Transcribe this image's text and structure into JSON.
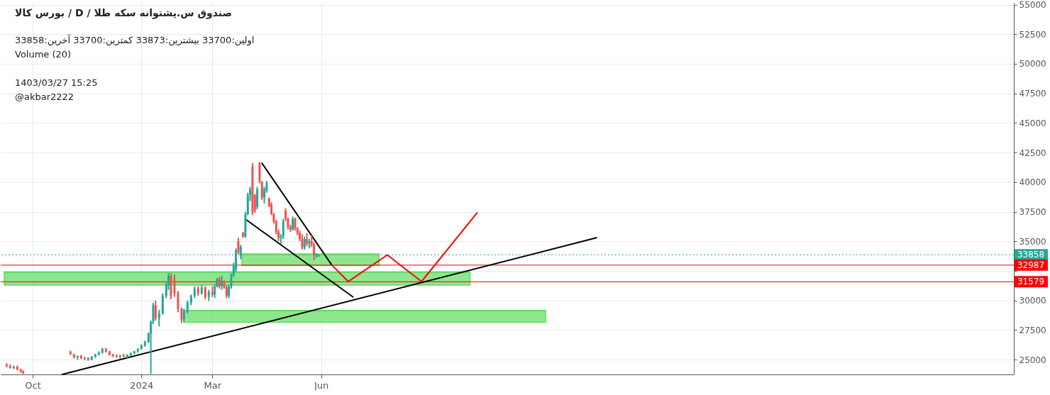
{
  "chart_data": {
    "type": "candlestick",
    "title": "صندوق س.پشتوانه سکه طلا / D / بورس کالا",
    "annotations": [
      "اولین:33700  بیشترین:33873  کمترین:33700  آخرین:33858",
      "Volume (20)",
      "1403/03/27 15:25",
      "@akbar2222"
    ],
    "xlim": [
      "2023-09-07",
      "2026-01-05"
    ],
    "xticks": [
      {
        "value": "2023-10-01",
        "label": "Oct"
      },
      {
        "value": "2024-01-01",
        "label": "2024"
      },
      {
        "value": "2024-03-01",
        "label": "Mar"
      },
      {
        "value": "2024-06-01",
        "label": "Jun"
      }
    ],
    "ylim": [
      23750,
      55150
    ],
    "yticks": [
      25000,
      27500,
      30000,
      {
        "value": 32500,
        "label": null
      },
      35000,
      37500,
      40000,
      42500,
      45000,
      47500,
      50000,
      52500,
      55000
    ],
    "grid": true,
    "ref_lines": [
      {
        "axis": "y",
        "value": 33858,
        "label": "33858",
        "color": "#26a69a",
        "line_style": "dotted"
      },
      {
        "axis": "y",
        "value": 32987,
        "label": "32987",
        "color": "#ff0000",
        "line_style": "solid"
      },
      {
        "axis": "y",
        "value": 31579,
        "label": "31579",
        "color": "#ff0000",
        "line_style": "solid"
      }
    ],
    "series": [
      {
        "type": "line",
        "x": [
          "2024-03-26",
          "2024-07-20"
        ],
        "values": [
          33900,
          33900
        ],
        "lower": [
          32950,
          32950
        ],
        "upper": [
          33900,
          33900
        ],
        "color": "#5fdc5f"
      },
      {
        "type": "line",
        "x": [
          "2023-09-07",
          "2024-10-05"
        ],
        "values": [
          32400,
          32400
        ],
        "lower": [
          31300,
          31300
        ],
        "upper": [
          32400,
          32400
        ],
        "color": "#5fdc5f"
      },
      {
        "type": "line",
        "x": [
          "2024-02-06",
          "2024-12-08"
        ],
        "values": [
          29150,
          29150
        ],
        "lower": [
          28150,
          28150
        ],
        "upper": [
          29150,
          29150
        ],
        "color": "#5fdc5f"
      },
      {
        "type": "line",
        "x": [
          "2023-10-26",
          "2025-01-20"
        ],
        "values": [
          23750,
          35300
        ],
        "color": "#000000"
      },
      {
        "type": "line",
        "x": [
          "2024-04-12",
          "2024-06-10"
        ],
        "values": [
          41600,
          33000
        ],
        "color": "#000000"
      },
      {
        "type": "line",
        "x": [
          "2024-03-30",
          "2024-06-28"
        ],
        "values": [
          36800,
          30300
        ],
        "color": "#000000"
      },
      {
        "type": "line",
        "x": [
          "2024-06-10",
          "2024-06-24",
          "2024-07-27",
          "2024-08-25",
          "2024-10-11"
        ],
        "values": [
          33000,
          31600,
          33850,
          31600,
          37400
        ],
        "color": "#ff0000"
      },
      {
        "x": [
          "2023-09-09",
          "2023-09-12",
          "2023-09-15",
          "2023-09-18",
          "2023-09-21",
          "2023-09-23",
          "2023-11-02",
          "2023-11-05",
          "2023-11-08",
          "2023-11-11",
          "2023-11-14",
          "2023-11-17",
          "2023-11-20",
          "2023-11-23",
          "2023-11-26",
          "2023-11-29",
          "2023-12-02",
          "2023-12-05",
          "2023-12-08",
          "2023-12-11",
          "2023-12-14",
          "2023-12-17",
          "2023-12-20",
          "2023-12-23",
          "2023-12-26",
          "2023-12-29",
          "2024-01-01",
          "2024-01-04",
          "2024-01-07",
          "2024-01-09",
          "2024-01-11",
          "2024-01-13",
          "2024-01-16",
          "2024-01-19",
          "2024-01-22",
          "2024-01-24",
          "2024-01-26",
          "2024-01-29",
          "2024-02-01",
          "2024-02-04",
          "2024-02-06",
          "2024-02-09",
          "2024-02-12",
          "2024-02-15",
          "2024-02-18",
          "2024-02-21",
          "2024-02-24",
          "2024-02-27",
          "2024-03-01",
          "2024-03-03",
          "2024-03-05",
          "2024-03-07",
          "2024-03-09",
          "2024-03-11",
          "2024-03-13",
          "2024-03-15",
          "2024-03-17",
          "2024-03-19",
          "2024-03-21",
          "2024-03-23",
          "2024-03-25",
          "2024-03-27",
          "2024-03-29",
          "2024-03-31",
          "2024-04-02",
          "2024-04-04",
          "2024-04-06",
          "2024-04-08",
          "2024-04-10",
          "2024-04-12",
          "2024-04-14",
          "2024-04-16",
          "2024-04-18",
          "2024-04-20",
          "2024-04-22",
          "2024-04-24",
          "2024-04-26",
          "2024-04-28",
          "2024-04-30",
          "2024-05-02",
          "2024-05-04",
          "2024-05-06",
          "2024-05-08",
          "2024-05-10",
          "2024-05-12",
          "2024-05-14",
          "2024-05-16",
          "2024-05-18",
          "2024-05-20",
          "2024-05-22",
          "2024-05-24",
          "2024-05-26",
          "2024-05-28",
          "2024-05-30"
        ],
        "ohlc": [
          [
            24550,
            24700,
            24350,
            24450
          ],
          [
            24450,
            24600,
            24250,
            24300
          ],
          [
            24300,
            24500,
            24200,
            24400
          ],
          [
            24400,
            24500,
            24100,
            24150
          ],
          [
            24150,
            24250,
            23900,
            24000
          ],
          [
            24000,
            24100,
            23800,
            23850
          ],
          [
            25650,
            25750,
            25400,
            25450
          ],
          [
            25450,
            25500,
            25100,
            25200
          ],
          [
            25200,
            25350,
            25000,
            25300
          ],
          [
            25300,
            25400,
            25050,
            25100
          ],
          [
            25100,
            25250,
            24950,
            25150
          ],
          [
            25150,
            25200,
            24900,
            25000
          ],
          [
            25000,
            25300,
            24950,
            25250
          ],
          [
            25250,
            25500,
            25150,
            25450
          ],
          [
            25450,
            25700,
            25350,
            25600
          ],
          [
            25600,
            26000,
            25500,
            25900
          ],
          [
            25900,
            26000,
            25600,
            25700
          ],
          [
            25700,
            25750,
            25350,
            25400
          ],
          [
            25400,
            25500,
            25200,
            25300
          ],
          [
            25300,
            25450,
            25150,
            25250
          ],
          [
            25250,
            25400,
            25100,
            25350
          ],
          [
            25350,
            25500,
            25200,
            25250
          ],
          [
            25250,
            25450,
            25150,
            25400
          ],
          [
            25400,
            25600,
            25300,
            25550
          ],
          [
            25550,
            25750,
            25450,
            25700
          ],
          [
            25700,
            25950,
            25600,
            25900
          ],
          [
            25900,
            26300,
            25850,
            26200
          ],
          [
            26200,
            26600,
            26100,
            26500
          ],
          [
            26500,
            27300,
            26400,
            27200
          ],
          [
            27200,
            28300,
            23800,
            28200
          ],
          [
            28200,
            29800,
            28000,
            29600
          ],
          [
            29600,
            30000,
            28300,
            28500
          ],
          [
            28500,
            29200,
            27800,
            28900
          ],
          [
            28900,
            30600,
            28800,
            30400
          ],
          [
            30400,
            31500,
            30200,
            31300
          ],
          [
            31300,
            32300,
            30900,
            32100
          ],
          [
            32100,
            32300,
            30100,
            30400
          ],
          [
            31800,
            32200,
            30300,
            30600
          ],
          [
            30600,
            30800,
            29000,
            29300
          ],
          [
            29300,
            29400,
            28100,
            28400
          ],
          [
            28400,
            29300,
            28200,
            29100
          ],
          [
            29100,
            30000,
            28900,
            29800
          ],
          [
            29800,
            30500,
            29600,
            30400
          ],
          [
            30400,
            31200,
            30200,
            31000
          ],
          [
            31000,
            31200,
            30400,
            30600
          ],
          [
            30600,
            31300,
            30500,
            31100
          ],
          [
            31100,
            31200,
            30100,
            30300
          ],
          [
            30300,
            30900,
            29950,
            30700
          ],
          [
            30700,
            31200,
            30300,
            30500
          ],
          [
            30500,
            31400,
            30200,
            31200
          ],
          [
            31200,
            31900,
            31100,
            31800
          ],
          [
            31800,
            32000,
            31000,
            31200
          ],
          [
            31200,
            32100,
            30900,
            31500
          ],
          [
            31500,
            31700,
            31000,
            31100
          ],
          [
            31100,
            31300,
            30200,
            30400
          ],
          [
            30400,
            31300,
            30200,
            31200
          ],
          [
            31200,
            32300,
            31000,
            32100
          ],
          [
            32100,
            33200,
            32000,
            33000
          ],
          [
            32600,
            34400,
            32400,
            34200
          ],
          [
            35000,
            35300,
            33900,
            34100
          ],
          [
            33800,
            34700,
            33500,
            34500
          ],
          [
            35700,
            35800,
            35300,
            35400
          ],
          [
            35400,
            37500,
            35300,
            37300
          ],
          [
            37300,
            39100,
            37200,
            38900
          ],
          [
            38900,
            39600,
            38400,
            39400
          ],
          [
            41300,
            41600,
            37200,
            37500
          ],
          [
            38900,
            39000,
            37400,
            37600
          ],
          [
            37900,
            39600,
            37700,
            39400
          ],
          [
            41600,
            41700,
            39900,
            40100
          ],
          [
            40000,
            40100,
            38500,
            38700
          ],
          [
            38700,
            39600,
            38200,
            39400
          ],
          [
            39300,
            40100,
            39100,
            39900
          ],
          [
            38600,
            38700,
            37900,
            38000
          ],
          [
            38100,
            38300,
            37200,
            37300
          ],
          [
            37300,
            37400,
            36500,
            36700
          ],
          [
            36700,
            36800,
            35600,
            35800
          ],
          [
            35800,
            36000,
            35000,
            35300
          ],
          [
            35300,
            35600,
            34800,
            35400
          ],
          [
            35400,
            36900,
            35200,
            36700
          ],
          [
            37600,
            37800,
            36700,
            36900
          ],
          [
            36900,
            37000,
            36000,
            36200
          ],
          [
            36200,
            36400,
            35800,
            36000
          ],
          [
            36000,
            37100,
            35900,
            36900
          ],
          [
            36900,
            37000,
            35900,
            36100
          ],
          [
            36100,
            36200,
            35500,
            35700
          ],
          [
            35700,
            35900,
            35000,
            35200
          ],
          [
            35200,
            35600,
            34300,
            34500
          ],
          [
            34500,
            35400,
            34300,
            35200
          ],
          [
            35200,
            35700,
            34600,
            34800
          ],
          [
            34800,
            35200,
            34400,
            35000
          ],
          [
            35000,
            35500,
            34500,
            34700
          ],
          [
            34700,
            34900,
            33400,
            33800
          ],
          [
            33800,
            34000,
            33600,
            33900
          ],
          [
            33700,
            33873,
            33700,
            33858
          ]
        ],
        "colors": [
          "#ef5350",
          "#ef5350",
          "#26a69a",
          "#ef5350",
          "#ef5350",
          "#ef5350",
          "#ef5350",
          "#ef5350",
          "#26a69a",
          "#ef5350",
          "#26a69a",
          "#ef5350",
          "#26a69a",
          "#26a69a",
          "#26a69a",
          "#26a69a",
          "#ef5350",
          "#ef5350",
          "#ef5350",
          "#ef5350",
          "#26a69a",
          "#ef5350",
          "#26a69a",
          "#26a69a",
          "#26a69a",
          "#26a69a",
          "#26a69a",
          "#26a69a",
          "#26a69a",
          "#26a69a",
          "#26a69a",
          "#ef5350",
          "#26a69a",
          "#26a69a",
          "#26a69a",
          "#26a69a",
          "#ef5350",
          "#ef5350",
          "#ef5350",
          "#ef5350",
          "#26a69a",
          "#26a69a",
          "#26a69a",
          "#26a69a",
          "#ef5350",
          "#26a69a",
          "#ef5350",
          "#26a69a",
          "#ef5350",
          "#26a69a",
          "#26a69a",
          "#ef5350",
          "#26a69a",
          "#ef5350",
          "#ef5350",
          "#26a69a",
          "#26a69a",
          "#26a69a",
          "#26a69a",
          "#ef5350",
          "#26a69a",
          "#ef5350",
          "#26a69a",
          "#26a69a",
          "#26a69a",
          "#ef5350",
          "#ef5350",
          "#26a69a",
          "#ef5350",
          "#ef5350",
          "#26a69a",
          "#26a69a",
          "#ef5350",
          "#ef5350",
          "#ef5350",
          "#ef5350",
          "#ef5350",
          "#26a69a",
          "#26a69a",
          "#ef5350",
          "#ef5350",
          "#ef5350",
          "#26a69a",
          "#ef5350",
          "#ef5350",
          "#ef5350",
          "#ef5350",
          "#26a69a",
          "#ef5350",
          "#26a69a",
          "#ef5350",
          "#ef5350",
          "#26a69a",
          "#26a69a"
        ]
      }
    ]
  }
}
